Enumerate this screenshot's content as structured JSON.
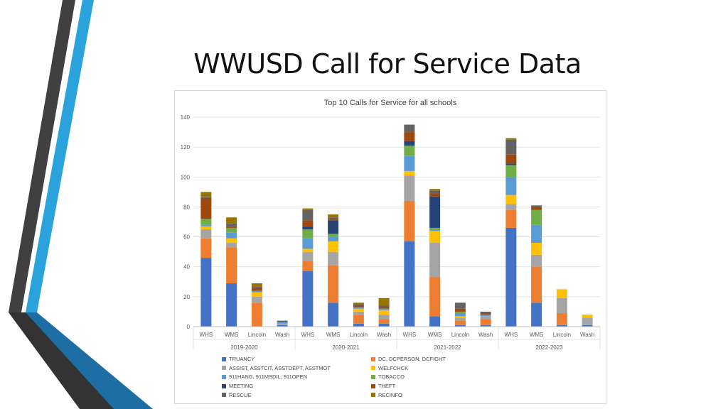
{
  "slide": {
    "title": "WWUSD Call for Service Data",
    "decoration_colors": {
      "dark": "#404040",
      "blue": "#2aa3dc",
      "deep_blue": "#1c6ea4"
    }
  },
  "chart_data": {
    "type": "bar",
    "stacked": true,
    "title": "Top 10 Calls for Service for all schools",
    "xlabel": "",
    "ylabel": "",
    "ylim": [
      0,
      140
    ],
    "yticks": [
      0,
      20,
      40,
      60,
      80,
      100,
      120,
      140
    ],
    "grid": true,
    "legend_position": "bottom",
    "groups": [
      {
        "label": "2019-2020",
        "categories": [
          "WHS",
          "WMS",
          "Lincoln",
          "Wash"
        ]
      },
      {
        "label": "2020-2021",
        "categories": [
          "WHS",
          "WMS",
          "Lincoln",
          "Wash"
        ]
      },
      {
        "label": "2021-2022",
        "categories": [
          "WHS",
          "WMS",
          "Lincoln",
          "Wash"
        ]
      },
      {
        "label": "2022-2023",
        "categories": [
          "WHS",
          "WMS",
          "Lincoln",
          "Wash"
        ]
      }
    ],
    "series": [
      {
        "name": "TRUANCY",
        "color": "#4472c4",
        "values": [
          46,
          29,
          0,
          1,
          37,
          16,
          2,
          2,
          57,
          7,
          1,
          1,
          66,
          16,
          1,
          1
        ]
      },
      {
        "name": "DC, DCPERSON, DCFIGHT",
        "color": "#ed7d31",
        "values": [
          13,
          24,
          16,
          0,
          7,
          25,
          6,
          3,
          27,
          26,
          3,
          4,
          12,
          24,
          8,
          0
        ]
      },
      {
        "name": "ASSIST, ASSTCIT, ASSTDEPT, ASSTMOT",
        "color": "#a5a5a5",
        "values": [
          6,
          3,
          4,
          1,
          6,
          9,
          2,
          3,
          17,
          23,
          2,
          2,
          4,
          8,
          10,
          5
        ]
      },
      {
        "name": "WELFCHCK",
        "color": "#ffc000",
        "values": [
          2,
          3,
          3,
          0,
          2,
          7,
          2,
          3,
          3,
          8,
          1,
          0,
          6,
          8,
          6,
          2
        ]
      },
      {
        "name": "911HANG, 911MSDIL, 911OPEN",
        "color": "#5b9bd5",
        "values": [
          1,
          4,
          1,
          1,
          7,
          3,
          1,
          1,
          10,
          1,
          2,
          1,
          12,
          12,
          0,
          0
        ]
      },
      {
        "name": "TOBACCO",
        "color": "#70ad47",
        "values": [
          4,
          3,
          0,
          0,
          6,
          2,
          0,
          0,
          7,
          1,
          1,
          0,
          8,
          10,
          0,
          0
        ]
      },
      {
        "name": "MEETING",
        "color": "#264478",
        "values": [
          0,
          0,
          0,
          0,
          2,
          9,
          0,
          0,
          3,
          21,
          0,
          0,
          1,
          0,
          0,
          0
        ]
      },
      {
        "name": "THEFT",
        "color": "#9e480e",
        "values": [
          14,
          1,
          2,
          0,
          4,
          1,
          1,
          1,
          6,
          2,
          2,
          1,
          6,
          2,
          0,
          0
        ]
      },
      {
        "name": "RESCUE",
        "color": "#636363",
        "values": [
          1,
          2,
          1,
          1,
          7,
          1,
          1,
          1,
          5,
          2,
          4,
          1,
          10,
          1,
          0,
          0
        ]
      },
      {
        "name": "RECINFO",
        "color": "#997300",
        "values": [
          3,
          4,
          2,
          0,
          1,
          2,
          1,
          5,
          0,
          1,
          0,
          0,
          1,
          0,
          0,
          0
        ]
      }
    ]
  }
}
